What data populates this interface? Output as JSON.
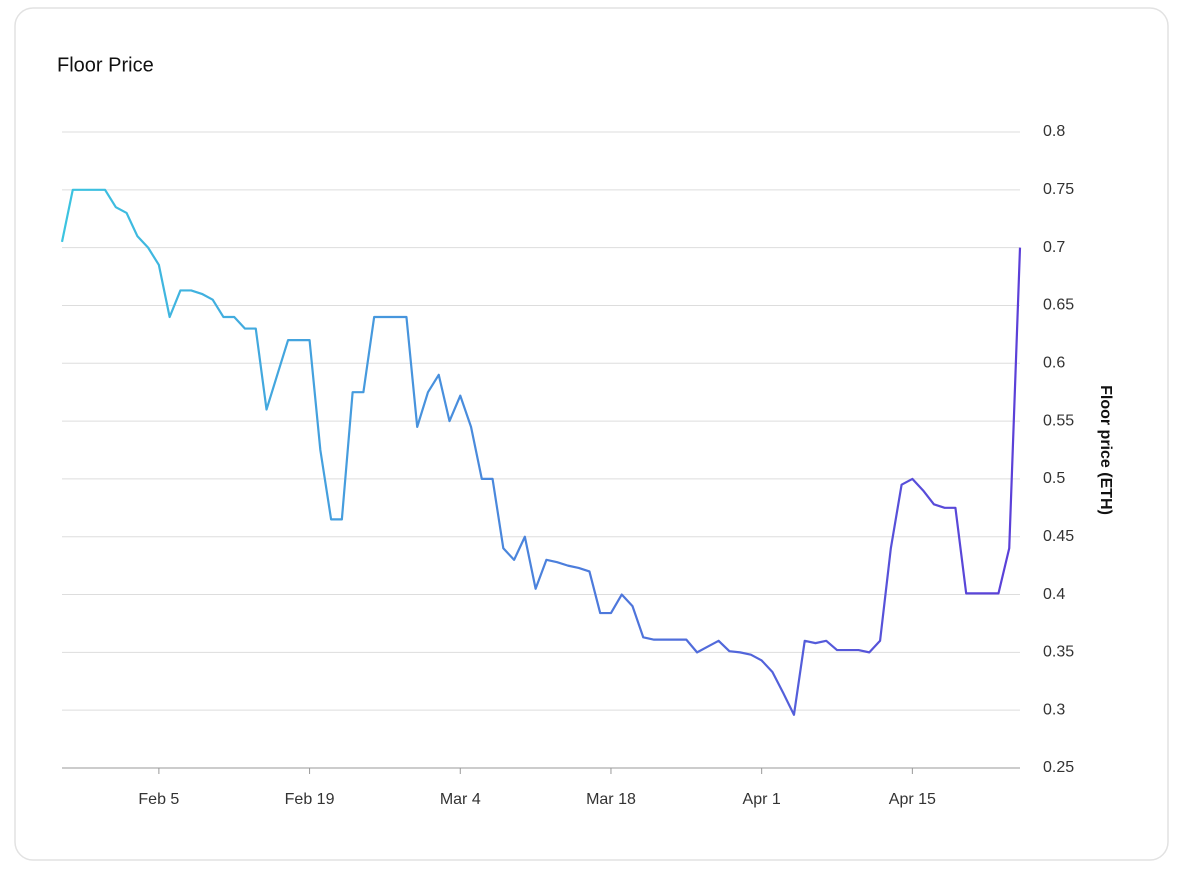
{
  "chart_data": {
    "type": "line",
    "title": "Floor Price",
    "y_label": "Floor price (ETH)",
    "x": [
      "Jan 27",
      "Jan 28",
      "Jan 29",
      "Jan 30",
      "Jan 31",
      "Feb 1",
      "Feb 2",
      "Feb 3",
      "Feb 4",
      "Feb 5",
      "Feb 6",
      "Feb 7",
      "Feb 8",
      "Feb 9",
      "Feb 10",
      "Feb 11",
      "Feb 12",
      "Feb 13",
      "Feb 14",
      "Feb 15",
      "Feb 16",
      "Feb 17",
      "Feb 18",
      "Feb 19",
      "Feb 20",
      "Feb 21",
      "Feb 22",
      "Feb 23",
      "Feb 24",
      "Feb 25",
      "Feb 26",
      "Feb 27",
      "Feb 28",
      "Feb 29",
      "Mar 1",
      "Mar 2",
      "Mar 3",
      "Mar 4",
      "Mar 5",
      "Mar 6",
      "Mar 7",
      "Mar 8",
      "Mar 9",
      "Mar 10",
      "Mar 11",
      "Mar 12",
      "Mar 13",
      "Mar 14",
      "Mar 15",
      "Mar 16",
      "Mar 17",
      "Mar 18",
      "Mar 19",
      "Mar 20",
      "Mar 21",
      "Mar 22",
      "Mar 23",
      "Mar 24",
      "Mar 25",
      "Mar 26",
      "Mar 27",
      "Mar 28",
      "Mar 29",
      "Mar 30",
      "Mar 31",
      "Apr 1",
      "Apr 2",
      "Apr 3",
      "Apr 4",
      "Apr 5",
      "Apr 6",
      "Apr 7",
      "Apr 8",
      "Apr 9",
      "Apr 10",
      "Apr 11",
      "Apr 12",
      "Apr 13",
      "Apr 14",
      "Apr 15",
      "Apr 16",
      "Apr 17",
      "Apr 18",
      "Apr 19",
      "Apr 20",
      "Apr 21",
      "Apr 22",
      "Apr 23",
      "Apr 24",
      "Apr 25"
    ],
    "values": [
      0.705,
      0.75,
      0.75,
      0.75,
      0.75,
      0.735,
      0.73,
      0.71,
      0.7,
      0.685,
      0.64,
      0.663,
      0.663,
      0.66,
      0.655,
      0.64,
      0.64,
      0.63,
      0.63,
      0.56,
      0.59,
      0.62,
      0.62,
      0.62,
      0.525,
      0.465,
      0.465,
      0.575,
      0.575,
      0.64,
      0.64,
      0.64,
      0.64,
      0.545,
      0.575,
      0.59,
      0.55,
      0.572,
      0.545,
      0.5,
      0.5,
      0.44,
      0.43,
      0.45,
      0.405,
      0.43,
      0.428,
      0.425,
      0.423,
      0.42,
      0.384,
      0.384,
      0.4,
      0.39,
      0.363,
      0.361,
      0.361,
      0.361,
      0.361,
      0.35,
      0.355,
      0.36,
      0.351,
      0.35,
      0.348,
      0.343,
      0.333,
      0.315,
      0.296,
      0.36,
      0.358,
      0.36,
      0.352,
      0.352,
      0.352,
      0.35,
      0.36,
      0.44,
      0.495,
      0.5,
      0.49,
      0.478,
      0.475,
      0.475,
      0.401,
      0.401,
      0.401,
      0.401,
      0.44,
      0.7
    ],
    "colors": [
      "#3cc4e0",
      "#5b3fd8"
    ],
    "xlim": [
      "Jan 27",
      "Apr 25"
    ],
    "xticks": [
      "Feb 5",
      "Feb 19",
      "Mar 4",
      "Mar 18",
      "Apr 1",
      "Apr 15"
    ],
    "ylim": [
      0.25,
      0.8
    ],
    "yticks": [
      0.25,
      0.3,
      0.35,
      0.4,
      0.45,
      0.5,
      0.55,
      0.6,
      0.65,
      0.7,
      0.75,
      0.8
    ],
    "grid": true
  }
}
